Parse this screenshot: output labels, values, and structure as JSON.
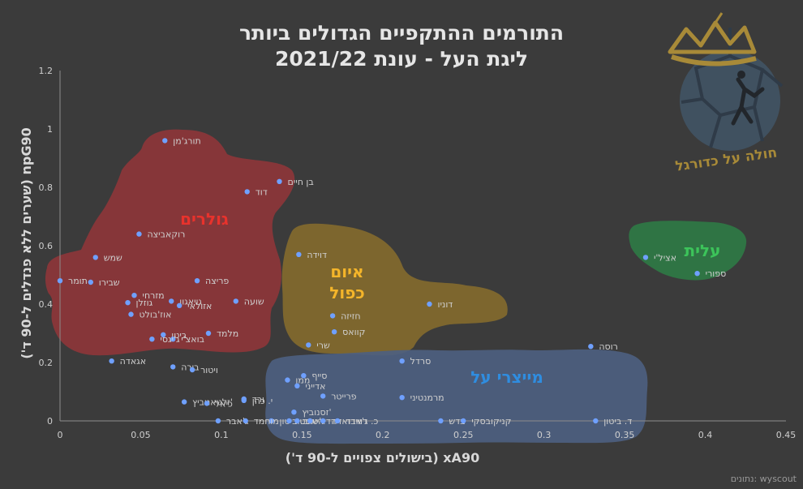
{
  "header": {
    "title_line1": "התורמים ההתקפיים הגדולים ביותר",
    "title_line2": "ליגת העל - עונת 2021/22"
  },
  "source": "נתונים: wyscout",
  "logo": {
    "text": "חולה על כדורגל"
  },
  "colors": {
    "background": "#3b3b3b",
    "point": "#6fa0ff",
    "label": "#d0d0d0",
    "zone_scorers": "#a0353a",
    "zone_double": "#8a6f2d",
    "zone_creators": "#4d6080",
    "zone_elite": "#2f7a45",
    "zone_scorers_text": "#e8322c",
    "zone_double_text": "#f4b52a",
    "zone_creators_text": "#2f8de0",
    "zone_elite_text": "#3cc45a"
  },
  "chart_data": {
    "type": "scatter",
    "title": "התורמים ההתקפיים הגדולים ביותר ליגת העל - עונת 2021/22",
    "xlabel": "xA90 (בישולים צפויים ל-90 ד')",
    "ylabel": "npG90 (שערים ללא פנדלים ל-90 ד')",
    "xlim": [
      0,
      0.45
    ],
    "ylim": [
      0,
      1.2
    ],
    "x_ticks": [
      "0",
      "0.05",
      "0.1",
      "0.15",
      "0.2",
      "0.25",
      "0.3",
      "0.35",
      "0.4",
      "0.45"
    ],
    "y_ticks": [
      "0",
      "0.2",
      "0.4",
      "0.6",
      "0.8",
      "1",
      "1.2"
    ],
    "grid": false,
    "zones": [
      {
        "name": "גולרים",
        "color_key": "scorers"
      },
      {
        "name": "איום כפול",
        "color_key": "double"
      },
      {
        "name": "מייצרי על",
        "color_key": "creators"
      },
      {
        "name": "עלית",
        "color_key": "elite"
      }
    ],
    "points": [
      {
        "name": "תורג'מן",
        "x": 0.065,
        "y": 0.96
      },
      {
        "name": "בן חיים",
        "x": 0.136,
        "y": 0.82
      },
      {
        "name": "דוד",
        "x": 0.116,
        "y": 0.785
      },
      {
        "name": "רוקאביצה",
        "x": 0.049,
        "y": 0.64
      },
      {
        "name": "שמש",
        "x": 0.022,
        "y": 0.56
      },
      {
        "name": "תומר",
        "x": 0.0,
        "y": 0.48
      },
      {
        "name": "שבירו",
        "x": 0.019,
        "y": 0.475
      },
      {
        "name": "פריצה",
        "x": 0.085,
        "y": 0.48
      },
      {
        "name": "מזרחי",
        "x": 0.046,
        "y": 0.43
      },
      {
        "name": "גויאגון",
        "x": 0.069,
        "y": 0.41
      },
      {
        "name": "גוזלן",
        "x": 0.042,
        "y": 0.405
      },
      {
        "name": "אזולאי",
        "x": 0.074,
        "y": 0.395
      },
      {
        "name": "שועה",
        "x": 0.109,
        "y": 0.41
      },
      {
        "name": "אוז'בולט",
        "x": 0.044,
        "y": 0.365
      },
      {
        "name": "מלמד",
        "x": 0.092,
        "y": 0.3
      },
      {
        "name": "ביטן",
        "x": 0.064,
        "y": 0.295
      },
      {
        "name": "בואצ'י",
        "x": 0.07,
        "y": 0.28
      },
      {
        "name": "ג'יגסי",
        "x": 0.057,
        "y": 0.28
      },
      {
        "name": "דוידה",
        "x": 0.148,
        "y": 0.57
      },
      {
        "name": "דוניו",
        "x": 0.229,
        "y": 0.4
      },
      {
        "name": "חזיזה",
        "x": 0.169,
        "y": 0.36
      },
      {
        "name": "קוואס",
        "x": 0.17,
        "y": 0.305
      },
      {
        "name": "שרי",
        "x": 0.154,
        "y": 0.26
      },
      {
        "name": "אציל'י",
        "x": 0.363,
        "y": 0.56
      },
      {
        "name": "ספורי",
        "x": 0.395,
        "y": 0.505
      },
      {
        "name": "רוסה",
        "x": 0.329,
        "y": 0.255
      },
      {
        "name": "אגאדה",
        "x": 0.032,
        "y": 0.205
      },
      {
        "name": "בירה",
        "x": 0.07,
        "y": 0.185
      },
      {
        "name": "ויטור",
        "x": 0.082,
        "y": 0.175
      },
      {
        "name": "סרדל",
        "x": 0.212,
        "y": 0.205
      },
      {
        "name": "ממן",
        "x": 0.141,
        "y": 0.14
      },
      {
        "name": "סייף",
        "x": 0.151,
        "y": 0.155
      },
      {
        "name": "אדייני",
        "x": 0.147,
        "y": 0.12
      },
      {
        "name": "ורד",
        "x": 0.114,
        "y": 0.075
      },
      {
        "name": "פרייטר",
        "x": 0.163,
        "y": 0.085
      },
      {
        "name": "מרמנטיני",
        "x": 0.212,
        "y": 0.08
      },
      {
        "name": "זלטאנוביץ'",
        "x": 0.077,
        "y": 0.065
      },
      {
        "name": "כיאל",
        "x": 0.091,
        "y": 0.06
      },
      {
        "name": "י. כהן",
        "x": 0.114,
        "y": 0.07
      },
      {
        "name": "זסנוביץ'",
        "x": 0.145,
        "y": 0.03
      },
      {
        "name": "ב. ביטון",
        "x": 0.131,
        "y": 0.0
      },
      {
        "name": "ג'אבר",
        "x": 0.098,
        "y": 0.0
      },
      {
        "name": "מוחמד",
        "x": 0.115,
        "y": 0.0
      },
      {
        "name": "טוויטו",
        "x": 0.142,
        "y": 0.0
      },
      {
        "name": "ג'יאס",
        "x": 0.147,
        "y": 0.0
      },
      {
        "name": "דדיה",
        "x": 0.155,
        "y": 0.0
      },
      {
        "name": "דווידזאדה",
        "x": 0.163,
        "y": 0.0
      },
      {
        "name": "כ. ג'אבר",
        "x": 0.172,
        "y": 0.0
      },
      {
        "name": "בדש",
        "x": 0.236,
        "y": 0.0
      },
      {
        "name": "קניקובסקי",
        "x": 0.25,
        "y": 0.0
      },
      {
        "name": "ד. ביטון",
        "x": 0.332,
        "y": 0.0
      }
    ]
  }
}
